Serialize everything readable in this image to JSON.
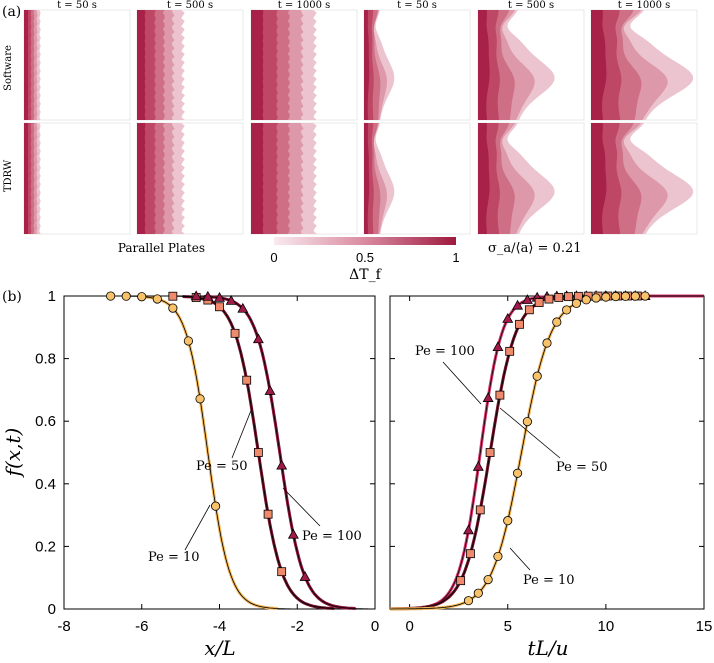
{
  "panel_a": {
    "label": "(a)",
    "row_labels": [
      "Software",
      "TDRW"
    ],
    "time_labels": [
      "t = 50 s",
      "t = 500 s",
      "t = 1000 s",
      "t = 50 s",
      "t = 500 s",
      "t = 1000 s"
    ],
    "legend_left": "Parallel Plates",
    "legend_right": "σ_a/⟨a⟩ = 0.21",
    "colorbar": {
      "ticks": [
        "0",
        "0.5",
        "1"
      ],
      "label": "ΔT_f",
      "color_low": "#f6dfe6",
      "color_high": "#9e1a40"
    },
    "band_colors": [
      "#a82148",
      "#bf4766",
      "#cf6f86",
      "#dd98a9",
      "#ecc4cf"
    ]
  },
  "chart_data": [
    {
      "type": "line",
      "panel": "(b) left",
      "xlabel": "x/L",
      "ylabel": "f(x,t)",
      "xlim": [
        -8,
        0
      ],
      "ylim": [
        0,
        1
      ],
      "xticks": [
        "-8",
        "-6",
        "-4",
        "-2",
        "0"
      ],
      "yticks": [
        "0",
        "0.2",
        "0.4",
        "0.6",
        "0.8",
        "1"
      ],
      "series": [
        {
          "name": "Pe = 10",
          "color": "#f5b85a",
          "marker": "circle",
          "center": -4.3,
          "width": 0.28,
          "markers_x": [
            -6.8,
            -6.4,
            -6.0,
            -5.6,
            -5.2,
            -4.8,
            -4.5,
            -4.1
          ]
        },
        {
          "name": "Pe = 50",
          "color": "#6e1029",
          "marker": "square",
          "marker_color": "#f08a6c",
          "center": -3.0,
          "width": 0.3,
          "markers_x": [
            -5.2,
            -4.6,
            -4.3,
            -4.0,
            -3.6,
            -3.3,
            -3.0,
            -2.75,
            -2.4
          ]
        },
        {
          "name": "Pe = 100",
          "color": "#8a1038",
          "marker": "triangle",
          "marker_color": "#a21a4a",
          "center": -2.45,
          "width": 0.3,
          "markers_x": [
            -4.6,
            -4.3,
            -4.0,
            -3.7,
            -3.4,
            -3.0,
            -2.7,
            -2.4,
            -2.1,
            -1.8
          ]
        }
      ],
      "annotations": [
        "Pe = 10",
        "Pe = 50",
        "Pe = 100"
      ]
    },
    {
      "type": "line",
      "panel": "(b) right",
      "xlabel": "tL/u",
      "ylabel": "",
      "xlim": [
        -1,
        15
      ],
      "ylim": [
        0,
        1
      ],
      "xticks": [
        "0",
        "5",
        "10",
        "15"
      ],
      "series": [
        {
          "name": "Pe = 100",
          "color": "#d6336c",
          "marker": "triangle",
          "marker_color": "#a21a4a",
          "center": 3.6,
          "width": 0.55,
          "markers_x": [
            3.0,
            3.5,
            4.0,
            4.5,
            5.0,
            5.5,
            6.0,
            6.5,
            7.0,
            7.5,
            8.0,
            8.5,
            9.0,
            9.5,
            10.0,
            10.5,
            11.0,
            11.5,
            12.0
          ]
        },
        {
          "name": "Pe = 50",
          "color": "#6e1029",
          "marker": "square",
          "marker_color": "#f08a6c",
          "center": 4.1,
          "width": 0.65,
          "markers_x": [
            2.6,
            3.1,
            3.6,
            4.1,
            4.6,
            5.1,
            5.6,
            6.1,
            6.6,
            7.1,
            7.6,
            8.1,
            8.6,
            9.1,
            9.6,
            10.1,
            10.6,
            11.1,
            11.6
          ]
        },
        {
          "name": "Pe = 10",
          "color": "#f5b85a",
          "marker": "circle",
          "marker_color": "#f7c26a",
          "center": 5.7,
          "width": 0.75,
          "markers_x": [
            3.0,
            3.5,
            4.0,
            4.5,
            5.0,
            5.5,
            6.0,
            6.5,
            7.0,
            7.5,
            8.0,
            8.5,
            9.0,
            9.5,
            10.0,
            10.5,
            11.0,
            11.5,
            12.0
          ]
        }
      ],
      "annotations": [
        "Pe = 100",
        "Pe = 50",
        "Pe = 10"
      ]
    }
  ],
  "panel_b": {
    "label": "(b)"
  }
}
